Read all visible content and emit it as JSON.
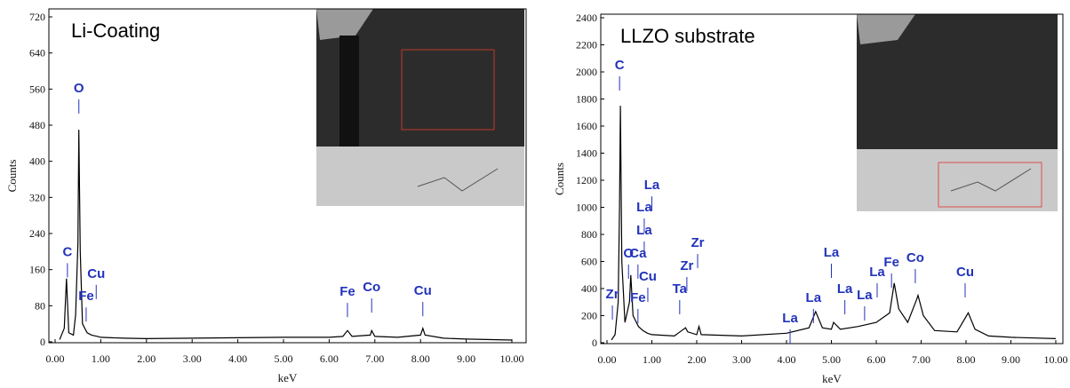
{
  "chart_data": [
    {
      "type": "line",
      "title": "Li-Coating",
      "xlabel": "keV",
      "ylabel": "Counts",
      "color": "#000000",
      "xlim": [
        0,
        10
      ],
      "ylim": [
        0,
        720
      ],
      "xticks": [
        {
          "value": 0,
          "label": "0.00"
        },
        {
          "value": 1,
          "label": "1.00"
        },
        {
          "value": 2,
          "label": "2.00"
        },
        {
          "value": 3,
          "label": "3.00"
        },
        {
          "value": 4,
          "label": "4.00"
        },
        {
          "value": 5,
          "label": "5.00"
        },
        {
          "value": 6,
          "label": "6.00"
        },
        {
          "value": 7,
          "label": "7.00"
        },
        {
          "value": 8,
          "label": "8.00"
        },
        {
          "value": 9,
          "label": "9.00"
        },
        {
          "value": 10,
          "label": "10.00"
        }
      ],
      "yticks": [
        0,
        80,
        160,
        240,
        320,
        400,
        480,
        560,
        640,
        720
      ],
      "x": [
        0.1,
        0.2,
        0.25,
        0.3,
        0.4,
        0.45,
        0.5,
        0.52,
        0.55,
        0.6,
        0.7,
        0.8,
        0.93,
        1.0,
        1.5,
        2.0,
        3.0,
        4.0,
        5.0,
        6.0,
        6.3,
        6.4,
        6.5,
        6.9,
        6.93,
        7.0,
        7.5,
        8.0,
        8.05,
        8.1,
        8.5,
        9.0,
        10.0
      ],
      "values": [
        5,
        30,
        140,
        20,
        15,
        60,
        220,
        470,
        200,
        40,
        20,
        15,
        12,
        10,
        8,
        7,
        8,
        9,
        10,
        10,
        12,
        25,
        12,
        15,
        25,
        12,
        10,
        15,
        30,
        15,
        8,
        6,
        4
      ],
      "peak_labels": [
        {
          "label": "O",
          "x": 0.52,
          "y": 553
        },
        {
          "label": "C",
          "x": 0.27,
          "y": 190
        },
        {
          "label": "Cu",
          "x": 0.9,
          "y": 142
        },
        {
          "label": "Fe",
          "x": 0.68,
          "y": 92
        },
        {
          "label": "Fe",
          "x": 6.4,
          "y": 102
        },
        {
          "label": "Co",
          "x": 6.93,
          "y": 112
        },
        {
          "label": "Cu",
          "x": 8.05,
          "y": 104
        }
      ]
    },
    {
      "type": "line",
      "title": "LLZO substrate",
      "xlabel": "keV",
      "ylabel": "Counts",
      "color": "#000000",
      "xlim": [
        0,
        10
      ],
      "ylim": [
        0,
        2400
      ],
      "xticks": [
        {
          "value": 0,
          "label": "0.00"
        },
        {
          "value": 1,
          "label": "1.00"
        },
        {
          "value": 2,
          "label": "2.00"
        },
        {
          "value": 3,
          "label": "3.00"
        },
        {
          "value": 4,
          "label": "4.00"
        },
        {
          "value": 5,
          "label": "5.00"
        },
        {
          "value": 6,
          "label": "6.00"
        },
        {
          "value": 7,
          "label": "7.00"
        },
        {
          "value": 8,
          "label": "8.00"
        },
        {
          "value": 9,
          "label": "9.00"
        },
        {
          "value": 10,
          "label": "10.00"
        }
      ],
      "yticks": [
        0,
        200,
        400,
        600,
        800,
        1000,
        1200,
        1400,
        1600,
        1800,
        2000,
        2200,
        2400
      ],
      "x": [
        0.1,
        0.18,
        0.25,
        0.28,
        0.3,
        0.33,
        0.4,
        0.5,
        0.53,
        0.58,
        0.7,
        0.8,
        0.9,
        1.0,
        1.5,
        1.75,
        1.8,
        2.0,
        2.05,
        2.1,
        3.0,
        4.0,
        4.5,
        4.65,
        4.8,
        5.0,
        5.05,
        5.2,
        5.6,
        6.0,
        6.3,
        6.4,
        6.5,
        6.7,
        6.9,
        6.93,
        7.05,
        7.3,
        7.8,
        8.05,
        8.2,
        8.5,
        9.0,
        10.0
      ],
      "values": [
        20,
        60,
        300,
        1000,
        1750,
        600,
        150,
        300,
        500,
        200,
        120,
        90,
        70,
        60,
        50,
        110,
        80,
        60,
        120,
        60,
        50,
        70,
        110,
        230,
        110,
        100,
        150,
        100,
        120,
        150,
        220,
        440,
        250,
        150,
        320,
        350,
        200,
        90,
        80,
        220,
        100,
        50,
        40,
        30
      ],
      "peak_labels": [
        {
          "label": "C",
          "x": 0.28,
          "y": 2020
        },
        {
          "label": "La",
          "x": 1.0,
          "y": 1134
        },
        {
          "label": "La",
          "x": 0.83,
          "y": 970
        },
        {
          "label": "La",
          "x": 0.83,
          "y": 800
        },
        {
          "label": "O",
          "x": 0.48,
          "y": 630
        },
        {
          "label": "Ca",
          "x": 0.69,
          "y": 630
        },
        {
          "label": "Cu",
          "x": 0.91,
          "y": 459
        },
        {
          "label": "Fe",
          "x": 0.69,
          "y": 302
        },
        {
          "label": "Zr",
          "x": 0.12,
          "y": 328
        },
        {
          "label": "Zr",
          "x": 2.02,
          "y": 708
        },
        {
          "label": "Zr",
          "x": 1.78,
          "y": 538
        },
        {
          "label": "Ta",
          "x": 1.62,
          "y": 367
        },
        {
          "label": "La",
          "x": 4.08,
          "y": 151
        },
        {
          "label": "La",
          "x": 4.6,
          "y": 302
        },
        {
          "label": "La",
          "x": 5.0,
          "y": 636
        },
        {
          "label": "La",
          "x": 5.3,
          "y": 367
        },
        {
          "label": "La",
          "x": 5.74,
          "y": 321
        },
        {
          "label": "La",
          "x": 6.02,
          "y": 492
        },
        {
          "label": "Fe",
          "x": 6.34,
          "y": 564
        },
        {
          "label": "Co",
          "x": 6.87,
          "y": 597
        },
        {
          "label": "Cu",
          "x": 7.98,
          "y": 492
        }
      ]
    }
  ]
}
